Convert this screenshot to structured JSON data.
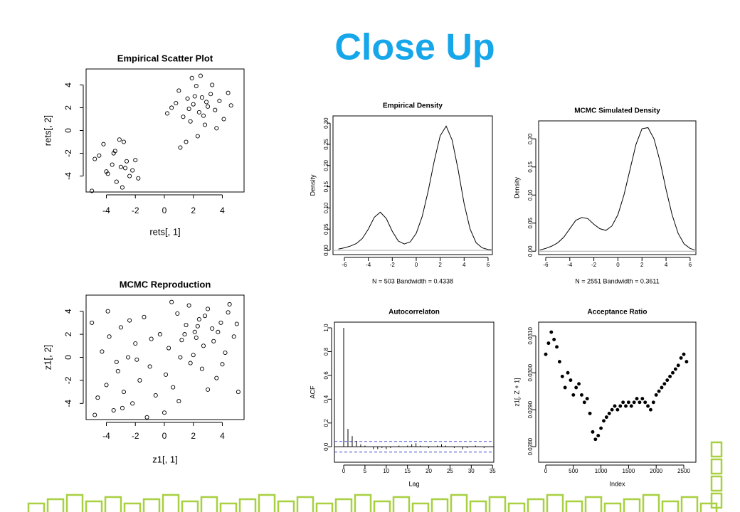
{
  "title": "Close Up",
  "chart_data": [
    {
      "type": "scatter",
      "title": "Empirical Scatter Plot",
      "x_label": "rets[, 1]",
      "y_label": "rets[, 2]",
      "xlim": [
        -5.4,
        5.5
      ],
      "ylim": [
        -5.4,
        5.4
      ],
      "xticks": [
        -4,
        -2,
        0,
        2,
        4
      ],
      "yticks": [
        -4,
        -2,
        0,
        2,
        4
      ],
      "color": "#000000",
      "x": [
        -4.8,
        -4.2,
        -3.9,
        -3.5,
        -3.3,
        -3.0,
        -2.8,
        -2.6,
        -2.4,
        -2.2,
        -3.6,
        -4.5,
        -2.9,
        -3.1,
        -2.0,
        -1.8,
        -4.0,
        -3.4,
        -2.7,
        -5.0,
        0.5,
        1.0,
        1.3,
        1.6,
        1.8,
        2.0,
        2.2,
        2.4,
        2.6,
        2.8,
        3.0,
        3.2,
        3.5,
        3.8,
        4.1,
        4.4,
        1.1,
        1.9,
        2.3,
        2.7,
        3.3,
        0.8,
        1.5,
        2.1,
        2.9,
        3.6,
        0.2,
        4.6,
        2.5,
        1.7
      ],
      "values": [
        -2.5,
        -1.2,
        -3.8,
        -2.0,
        -4.5,
        -3.2,
        -1.0,
        -2.7,
        -4.0,
        -3.5,
        -3.0,
        -2.2,
        -5.0,
        -0.8,
        -2.6,
        -4.2,
        -3.6,
        -1.8,
        -3.3,
        -5.3,
        2.0,
        3.5,
        1.2,
        2.8,
        0.8,
        2.3,
        3.9,
        1.6,
        2.9,
        0.5,
        2.1,
        3.2,
        1.8,
        2.6,
        1.0,
        3.3,
        -1.5,
        4.6,
        -0.5,
        1.3,
        4.0,
        2.4,
        -1.0,
        3.0,
        2.5,
        0.2,
        1.5,
        2.2,
        4.8,
        1.9
      ]
    },
    {
      "type": "scatter",
      "title": "MCMC Reproduction",
      "x_label": "z1[, 1]",
      "y_label": "z1[, 2]",
      "xlim": [
        -5.4,
        5.5
      ],
      "ylim": [
        -5.4,
        5.4
      ],
      "xticks": [
        -4,
        -2,
        0,
        2,
        4
      ],
      "yticks": [
        -4,
        -2,
        0,
        2,
        4
      ],
      "color": "#000000",
      "x": [
        -5.0,
        -4.6,
        -4.3,
        -4.0,
        -3.8,
        -3.5,
        -3.2,
        -3.0,
        -2.8,
        -2.5,
        -2.2,
        -2.0,
        -1.7,
        -1.4,
        -1.0,
        -0.6,
        -0.3,
        0.0,
        0.3,
        0.6,
        0.9,
        1.2,
        1.5,
        1.8,
        2.1,
        2.4,
        2.7,
        3.0,
        3.3,
        3.6,
        3.9,
        4.2,
        4.5,
        4.8,
        5.1,
        -4.8,
        -3.9,
        -2.9,
        -1.9,
        -0.9,
        0.1,
        1.0,
        2.0,
        3.0,
        4.0,
        5.0,
        1.4,
        2.3,
        2.8,
        3.4,
        1.7,
        2.6,
        -3.3,
        -2.4,
        0.5,
        1.1,
        3.7,
        4.4,
        2.2,
        -1.2
      ],
      "values": [
        3.0,
        -3.5,
        0.5,
        -2.4,
        1.8,
        -4.6,
        -1.2,
        2.6,
        -3.0,
        0.0,
        -4.0,
        1.2,
        -2.0,
        3.5,
        -0.8,
        -3.3,
        2.0,
        -4.8,
        0.8,
        -2.6,
        3.8,
        1.5,
        2.8,
        -0.5,
        2.2,
        3.3,
        1.0,
        4.2,
        2.5,
        -1.8,
        3.0,
        0.4,
        4.6,
        1.8,
        -3.0,
        -5.0,
        4.0,
        -4.4,
        -0.2,
        1.6,
        -1.5,
        -3.8,
        0.2,
        -2.8,
        -0.6,
        2.9,
        2.0,
        2.7,
        3.6,
        1.4,
        4.5,
        -1.0,
        -0.4,
        3.2,
        4.8,
        0.0,
        2.2,
        3.9,
        1.7,
        -5.2
      ]
    },
    {
      "type": "line",
      "title": "Empirical Density",
      "x_label": "N = 503   Bandwidth = 0.4338",
      "y_label": "Density",
      "xlim": [
        -6.95,
        6.36
      ],
      "ylim": [
        -0.01,
        0.317
      ],
      "xticks": [
        -6,
        -4,
        -2,
        0,
        2,
        4,
        6
      ],
      "yticks": [
        {
          "value": 0,
          "label": "0.00"
        },
        0.05,
        {
          "value": 0.1,
          "label": "0.10"
        },
        0.15,
        {
          "value": 0.2,
          "label": "0.20"
        },
        0.25,
        {
          "value": 0.3,
          "label": "0.30"
        }
      ],
      "color": "#000000",
      "x": [
        -6.5,
        -6,
        -5.5,
        -5,
        -4.5,
        -4,
        -3.5,
        -3,
        -2.5,
        -2,
        -1.5,
        -1,
        -0.5,
        0,
        0.5,
        1,
        1.5,
        2,
        2.5,
        3,
        3.5,
        4,
        4.5,
        5,
        5.5,
        6,
        6.3
      ],
      "values": [
        0.003,
        0.006,
        0.01,
        0.016,
        0.028,
        0.05,
        0.078,
        0.09,
        0.075,
        0.045,
        0.022,
        0.015,
        0.02,
        0.04,
        0.08,
        0.14,
        0.21,
        0.27,
        0.293,
        0.26,
        0.19,
        0.11,
        0.05,
        0.018,
        0.006,
        0.002,
        0.001
      ]
    },
    {
      "type": "line",
      "title": "MCMC Simulated Density",
      "x_label": "N = 2551   Bandwidth = 0.3611",
      "y_label": "Density",
      "xlim": [
        -6.59,
        6.48
      ],
      "ylim": [
        -0.006,
        0.232
      ],
      "xticks": [
        -6,
        -4,
        -2,
        0,
        2,
        4,
        6
      ],
      "yticks": [
        {
          "value": 0,
          "label": "0.00"
        },
        0.05,
        {
          "value": 0.1,
          "label": "0.10"
        },
        0.15,
        {
          "value": 0.2,
          "label": "0.20"
        }
      ],
      "color": "#000000",
      "x": [
        -6.5,
        -6,
        -5.5,
        -5,
        -4.5,
        -4,
        -3.5,
        -3,
        -2.5,
        -2,
        -1.5,
        -1,
        -0.5,
        0,
        0.5,
        1,
        1.5,
        2,
        2.5,
        3,
        3.5,
        4,
        4.5,
        5,
        5.5,
        6,
        6.4
      ],
      "values": [
        0.002,
        0.005,
        0.009,
        0.015,
        0.025,
        0.04,
        0.055,
        0.06,
        0.058,
        0.048,
        0.04,
        0.037,
        0.045,
        0.065,
        0.1,
        0.145,
        0.19,
        0.218,
        0.22,
        0.2,
        0.16,
        0.11,
        0.065,
        0.032,
        0.013,
        0.005,
        0.002
      ]
    },
    {
      "type": "bar",
      "title": "Autocorrelaton",
      "x_label": "Lag",
      "y_label": "ACF",
      "xlim": [
        -2.18,
        35.3
      ],
      "ylim": [
        -0.13,
        1.048
      ],
      "xticks": [
        0,
        5,
        10,
        15,
        20,
        25,
        30,
        35
      ],
      "yticks": [
        {
          "value": 0,
          "label": "0.0"
        },
        0.2,
        0.4,
        0.6,
        0.8,
        {
          "value": 1,
          "label": "1.0"
        }
      ],
      "color": "#000000",
      "ci_lines": [
        -0.045,
        0.045
      ],
      "ci_color": "#3a4fc8",
      "x": [
        0,
        1,
        2,
        3,
        4,
        5,
        6,
        7,
        8,
        9,
        10,
        11,
        12,
        13,
        14,
        15,
        16,
        17,
        18,
        19,
        20,
        21,
        22,
        23,
        24,
        25,
        26,
        27,
        28,
        29,
        30,
        31,
        32,
        33,
        34,
        35
      ],
      "values": [
        1,
        0.15,
        0.09,
        0.05,
        0.02,
        0.01,
        0.0,
        -0.02,
        -0.02,
        -0.01,
        -0.02,
        -0.01,
        0.0,
        0.01,
        0.0,
        0.01,
        0.02,
        0.03,
        0.01,
        0.0,
        -0.01,
        0.0,
        0.01,
        0.02,
        0.01,
        0.0,
        -0.01,
        0.0,
        -0.02,
        -0.01,
        0.0,
        0.01,
        0.0,
        -0.01,
        0.0,
        0.0
      ]
    },
    {
      "type": "scatter",
      "title": "Acceptance Ratio",
      "x_label": "Index",
      "y_label": "z1[, Z + 1]",
      "xlim": [
        -129,
        2719
      ],
      "ylim": [
        0.02758,
        0.03137
      ],
      "xticks": [
        0,
        500,
        1000,
        1500,
        2000,
        2500
      ],
      "yticks": [
        {
          "value": 0.028,
          "label": "0.0280"
        },
        {
          "value": 0.029,
          "label": "0.0290"
        },
        {
          "value": 0.03,
          "label": "0.0300"
        },
        {
          "value": 0.031,
          "label": "0.0310"
        }
      ],
      "color": "#000000",
      "x": [
        0,
        50,
        100,
        150,
        200,
        250,
        300,
        350,
        400,
        450,
        500,
        550,
        600,
        650,
        700,
        750,
        800,
        850,
        900,
        950,
        1000,
        1050,
        1100,
        1150,
        1200,
        1250,
        1300,
        1350,
        1400,
        1450,
        1500,
        1550,
        1600,
        1650,
        1700,
        1750,
        1800,
        1850,
        1900,
        1950,
        2000,
        2050,
        2100,
        2150,
        2200,
        2250,
        2300,
        2350,
        2400,
        2450,
        2500,
        2550
      ],
      "values": [
        0.0305,
        0.0308,
        0.0311,
        0.0309,
        0.0307,
        0.0303,
        0.0299,
        0.0296,
        0.03,
        0.0298,
        0.0294,
        0.0296,
        0.0297,
        0.0294,
        0.0292,
        0.0293,
        0.0289,
        0.0284,
        0.0282,
        0.0283,
        0.0285,
        0.0287,
        0.0288,
        0.0289,
        0.029,
        0.0291,
        0.029,
        0.0291,
        0.0292,
        0.0291,
        0.0292,
        0.0291,
        0.0292,
        0.0293,
        0.0292,
        0.0293,
        0.0292,
        0.0291,
        0.029,
        0.0292,
        0.0294,
        0.0295,
        0.0296,
        0.0297,
        0.0298,
        0.0299,
        0.03,
        0.0301,
        0.0302,
        0.0304,
        0.0305,
        0.0303
      ]
    }
  ]
}
